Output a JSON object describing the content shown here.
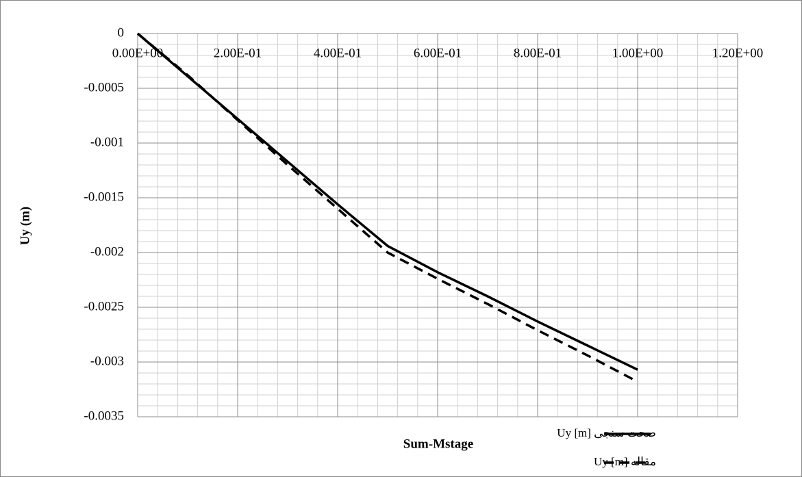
{
  "chart_data": {
    "type": "line",
    "x_label": "Sum-Mstage",
    "y_label": "Uy (m)",
    "x": [
      0,
      0.1,
      0.2,
      0.3,
      0.4,
      0.5,
      0.6,
      0.7,
      0.8,
      0.9,
      1.0
    ],
    "series": [
      {
        "name": "صحت سنجی Uy [m]",
        "color": "#000000",
        "dash": false,
        "values": [
          0,
          -0.00039,
          -0.00078,
          -0.00117,
          -0.00156,
          -0.00194,
          -0.00218,
          -0.0024,
          -0.00263,
          -0.00285,
          -0.00307
        ]
      },
      {
        "name": "مقاله Uy [m]",
        "color": "#000000",
        "dash": true,
        "values": [
          0,
          -0.00038,
          -0.00079,
          -0.0012,
          -0.0016,
          -0.002,
          -0.00224,
          -0.00247,
          -0.00271,
          -0.00294,
          -0.00318
        ]
      }
    ],
    "xlim": [
      0,
      1.2
    ],
    "xticks": [
      {
        "value": 0,
        "label": "0.00E+00"
      },
      {
        "value": 0.2,
        "label": "2.00E-01"
      },
      {
        "value": 0.4,
        "label": "4.00E-01"
      },
      {
        "value": 0.6,
        "label": "6.00E-01"
      },
      {
        "value": 0.8,
        "label": "8.00E-01"
      },
      {
        "value": 1.0,
        "label": "1.00E+00"
      },
      {
        "value": 1.2,
        "label": "1.20E+00"
      }
    ],
    "ylim": [
      -0.0035,
      0
    ],
    "yticks": [
      0,
      -0.0005,
      -0.001,
      -0.0015,
      -0.002,
      -0.0025,
      -0.003,
      -0.0035
    ],
    "grid": true,
    "minor_grid": true,
    "legend": "lower right"
  }
}
